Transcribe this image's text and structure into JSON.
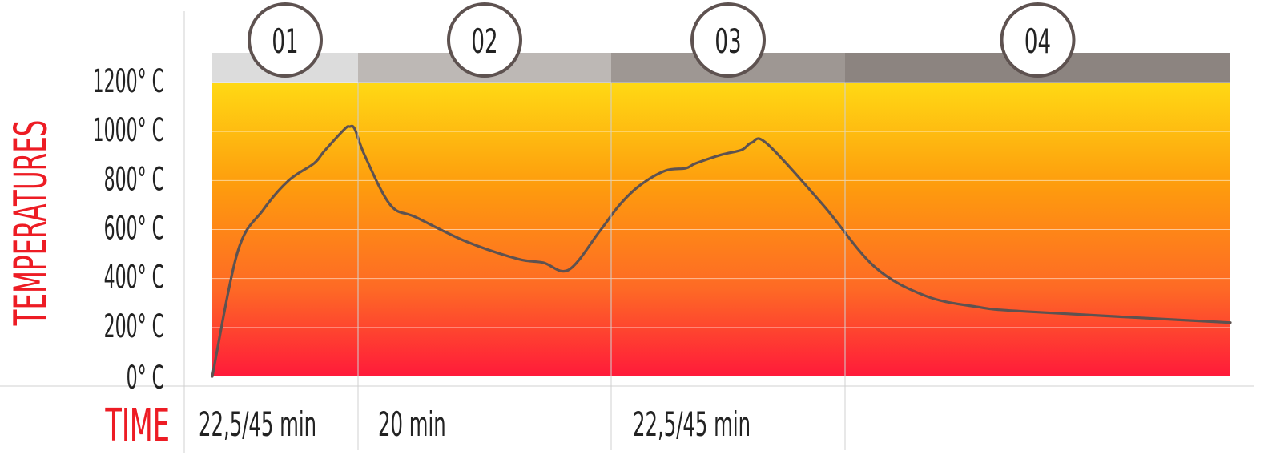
{
  "chart_data": {
    "type": "line",
    "ylabel": "TEMPERATURES",
    "xlabel": "TIME",
    "yticks": [
      "0° C",
      "200° C",
      "400° C",
      "600° C",
      "800° C",
      "1000° C",
      "1200° C"
    ],
    "ylim": [
      0,
      1200
    ],
    "grid": true,
    "phases": [
      {
        "label": "01",
        "duration": "22,5/45 min",
        "color": "#dcdcdc"
      },
      {
        "label": "02",
        "duration": "20 min",
        "color": "#bdb8b5"
      },
      {
        "label": "03",
        "duration": "22,5/45 min",
        "color": "#9e9793"
      },
      {
        "label": "04",
        "duration": "",
        "color": "#8c8480"
      }
    ],
    "series": [
      {
        "color": "#5e5250",
        "x": [
          0.0,
          0.025,
          0.05,
          0.075,
          0.1,
          0.11,
          0.13,
          0.135,
          0.14,
          0.15,
          0.175,
          0.2,
          0.25,
          0.3,
          0.325,
          0.35,
          0.38,
          0.4,
          0.42,
          0.445,
          0.465,
          0.475,
          0.5,
          0.52,
          0.53,
          0.545,
          0.6,
          0.65,
          0.7,
          0.75,
          0.8,
          1.0
        ],
        "y": [
          0,
          510,
          680,
          800,
          870,
          920,
          1010,
          1020,
          1010,
          900,
          700,
          650,
          550,
          480,
          465,
          435,
          590,
          700,
          780,
          840,
          850,
          870,
          905,
          925,
          955,
          950,
          700,
          450,
          330,
          285,
          265,
          220
        ]
      }
    ],
    "background_gradient": [
      "#ffd914",
      "#fe9c0d",
      "#fe6a25",
      "#ff1a3a"
    ],
    "axis_title_color": "#ed1c24",
    "text_color": "#222222"
  }
}
